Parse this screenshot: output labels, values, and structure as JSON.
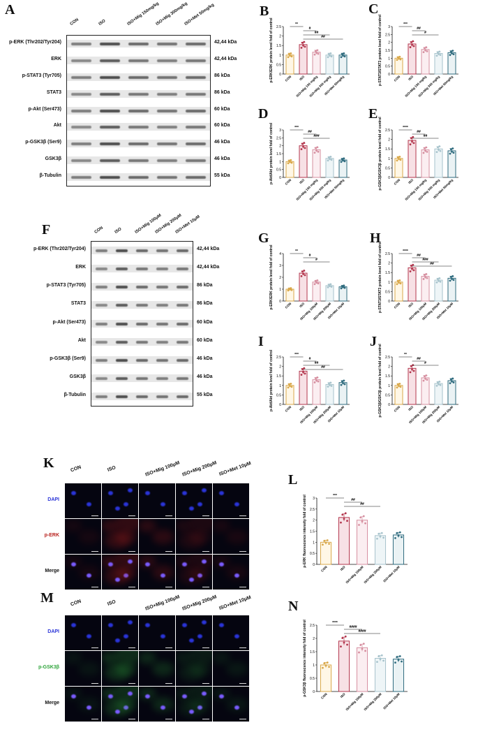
{
  "panel_letters": {
    "A": "A",
    "B": "B",
    "C": "C",
    "D": "D",
    "E": "E",
    "F": "F",
    "G": "G",
    "H": "H",
    "I": "I",
    "J": "J",
    "K": "K",
    "L": "L",
    "M": "M",
    "N": "N"
  },
  "blotA": {
    "lanes": [
      "CON",
      "ISO",
      "ISO+Mig 150mg/kg",
      "ISO+Mig 300mg/kg",
      "ISO+Met 50mg/kg"
    ],
    "labels": [
      "p-ERK (Thr202/Tyr204)",
      "ERK",
      "p-STAT3 (Tyr705)",
      "STAT3",
      "p-Akt (Ser473)",
      "Akt",
      "p-GSK3β (Ser9)",
      "GSK3β",
      "β-Tubulin"
    ],
    "kda": [
      "42,44 kDa",
      "42,44 kDa",
      "86 kDa",
      "86 kDa",
      "60 kDa",
      "60 kDa",
      "46 kDa",
      "46 kDa",
      "55 kDa"
    ]
  },
  "blotF": {
    "lanes": [
      "CON",
      "ISO",
      "ISO+Mig 100μM",
      "ISO+Mig 200μM",
      "ISO+Met 10μM"
    ],
    "labels": [
      "p-ERK (Thr202/Tyr204)",
      "ERK",
      "p-STAT3 (Tyr705)",
      "STAT3",
      "p-Akt (Ser473)",
      "Akt",
      "p-GSK3β (Ser9)",
      "GSK3β",
      "β-Tubulin"
    ],
    "kda": [
      "42,44 kDa",
      "42,44 kDa",
      "86 kDa",
      "86 kDa",
      "60 kDa",
      "60 kDa",
      "46 kDa",
      "46 kDa",
      "55 kDa"
    ]
  },
  "chart_data": [
    {
      "id": "B",
      "type": "bar",
      "categories": [
        "CON",
        "ISO",
        "ISO+Mig 150 mg/kg",
        "ISO+Mig 300 mg/kg",
        "ISO+Met 50mg/kg"
      ],
      "values": [
        1.0,
        1.55,
        1.15,
        1.0,
        1.0
      ],
      "ylabel": "p-ERK/ERK protein level fold of control",
      "ylim": [
        0,
        2.5
      ],
      "ticks": [
        0,
        0.5,
        1,
        1.5,
        2,
        2.5
      ],
      "sig": [
        "**",
        "#",
        "##",
        "##"
      ]
    },
    {
      "id": "C",
      "type": "bar",
      "categories": [
        "CON",
        "ISO",
        "ISO+Mig 150 mg/kg",
        "ISO+Mig 300 mg/kg",
        "ISO+Met 50mg/kg"
      ],
      "values": [
        1.0,
        1.9,
        1.55,
        1.3,
        1.35
      ],
      "ylabel": "p-STAT3/STAT3 protein level fold of control",
      "ylim": [
        0,
        3
      ],
      "ticks": [
        0,
        0.5,
        1,
        1.5,
        2,
        2.5,
        3
      ],
      "sig": [
        "***",
        "##",
        "#"
      ]
    },
    {
      "id": "D",
      "type": "bar",
      "categories": [
        "CON",
        "ISO",
        "ISO+Mig 150 mg/kg",
        "ISO+Mig 300 mg/kg",
        "ISO+Met 50mg/kg"
      ],
      "values": [
        1.0,
        2.0,
        1.75,
        1.2,
        1.1
      ],
      "ylabel": "p-Akt/Akt protein level fold of control",
      "ylim": [
        0,
        3
      ],
      "ticks": [
        0,
        0.5,
        1,
        1.5,
        2,
        2.5,
        3
      ],
      "sig": [
        "***",
        "##",
        "###"
      ]
    },
    {
      "id": "E",
      "type": "bar",
      "categories": [
        "CON",
        "ISO",
        "ISO+Mig 150 mg/kg",
        "ISO+Mig 300 mg/kg",
        "ISO+Met 50mg/kg"
      ],
      "values": [
        1.0,
        1.95,
        1.45,
        1.5,
        1.4
      ],
      "ylabel": "p-GSK3β/GSK3β protein level fold of control",
      "ylim": [
        0,
        2.5
      ],
      "ticks": [
        0,
        0.5,
        1,
        1.5,
        2,
        2.5
      ],
      "sig": [
        "****",
        "##",
        "##"
      ]
    },
    {
      "id": "G",
      "type": "bar",
      "categories": [
        "CON",
        "ISO",
        "ISO+Mig 100μM",
        "ISO+Mig 200μM",
        "ISO+Met 10μM"
      ],
      "values": [
        1.0,
        2.35,
        1.6,
        1.3,
        1.2
      ],
      "ylabel": "p-ERK/ERK protein level fold of control",
      "ylim": [
        0,
        4
      ],
      "ticks": [
        0,
        1,
        2,
        3,
        4
      ],
      "sig": [
        "**",
        "#",
        "#"
      ]
    },
    {
      "id": "H",
      "type": "bar",
      "categories": [
        "CON",
        "ISO",
        "ISO+Mig 100μM",
        "ISO+Mig 200μM",
        "ISO+Met 10μM"
      ],
      "values": [
        1.0,
        1.75,
        1.3,
        1.1,
        1.2
      ],
      "ylabel": "p-STAT3/STAT3 protein level fold of control",
      "ylim": [
        0,
        2.5
      ],
      "ticks": [
        0,
        0.5,
        1,
        1.5,
        2,
        2.5
      ],
      "sig": [
        "****",
        "##",
        "###",
        "##"
      ]
    },
    {
      "id": "I",
      "type": "bar",
      "categories": [
        "CON",
        "ISO",
        "ISO+Mig 100μM",
        "ISO+Mig 200μM",
        "ISO+Met 10μM"
      ],
      "values": [
        1.0,
        1.75,
        1.3,
        1.05,
        1.15
      ],
      "ylabel": "p-Akt/Akt protein level fold of control",
      "ylim": [
        0,
        2.5
      ],
      "ticks": [
        0,
        0.5,
        1,
        1.5,
        2,
        2.5
      ],
      "sig": [
        "***",
        "#",
        "##",
        "##"
      ]
    },
    {
      "id": "J",
      "type": "bar",
      "categories": [
        "CON",
        "ISO",
        "ISO+Mig 100μM",
        "ISO+Mig 200μM",
        "ISO+Met 10μM"
      ],
      "values": [
        1.0,
        1.9,
        1.4,
        1.1,
        1.25
      ],
      "ylabel": "p-GSK3β/GSK3β protein level fold of control",
      "ylim": [
        0,
        2.5
      ],
      "ticks": [
        0,
        0.5,
        1,
        1.5,
        2,
        2.5
      ],
      "sig": [
        "**",
        "##",
        "#"
      ]
    },
    {
      "id": "L",
      "type": "bar",
      "categories": [
        "CON",
        "ISO",
        "ISO+Mig 100μM",
        "ISO+Mig 200μM",
        "ISO+Met 10μM"
      ],
      "values": [
        1.0,
        2.12,
        2.0,
        1.3,
        1.33
      ],
      "ylabel": "p-ERK fluorescence intensity fold of control",
      "ylim": [
        0,
        3
      ],
      "ticks": [
        0,
        0.5,
        1,
        1.5,
        2,
        2.5,
        3
      ],
      "sig": [
        "***",
        "##",
        "##"
      ]
    },
    {
      "id": "N",
      "type": "bar",
      "categories": [
        "CON",
        "ISO",
        "ISO+Mig 100μM",
        "ISO+Mig 200μM",
        "ISO+Met 10μM"
      ],
      "values": [
        1.0,
        1.9,
        1.65,
        1.25,
        1.22
      ],
      "ylabel": "p-GSK3β fluorescence intensity fold of control",
      "ylim": [
        0,
        2.5
      ],
      "ticks": [
        0,
        0.5,
        1,
        1.5,
        2,
        2.5
      ],
      "sig": [
        "****",
        "####",
        "####"
      ]
    }
  ],
  "colors": {
    "CON": "#d9a84a",
    "ISO": "#b3364d",
    "Mig1": "#d68fa0",
    "Mig2": "#a7c3cc",
    "Met": "#2e6b7e",
    "dapi": "#2a34d8",
    "perk": "#b8201c",
    "pgsk": "#2ea43a"
  },
  "ifK": {
    "cols": [
      "CON",
      "ISO",
      "ISO+Mig 100μM",
      "ISO+Mig 200μM",
      "ISO+Met 10μM"
    ],
    "rows": [
      "DAPI",
      "p-ERK",
      "Merge"
    ]
  },
  "ifM": {
    "cols": [
      "CON",
      "ISO",
      "ISO+Mig 100μM",
      "ISO+Mig 200μM",
      "ISO+Met 10μM"
    ],
    "rows": [
      "DAPI",
      "p-GSK3β",
      "Merge"
    ]
  }
}
